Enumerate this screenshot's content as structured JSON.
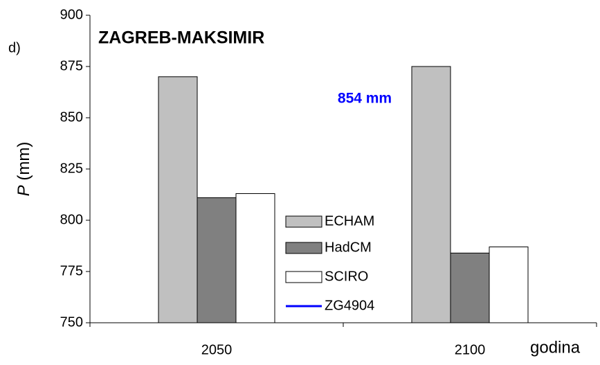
{
  "chart_data": {
    "type": "bar",
    "title": "ZAGREB-MAKSIMIR",
    "panel_label": "d)",
    "ylabel_var": "P",
    "ylabel_unit": "(mm)",
    "xlabel": "godina",
    "categories": [
      "2050",
      "2100"
    ],
    "series": [
      {
        "name": "ECHAM",
        "color": "#c0c0c0",
        "values": [
          870,
          875
        ]
      },
      {
        "name": "HadCM",
        "color": "#808080",
        "values": [
          811,
          784
        ]
      },
      {
        "name": "SCIRO",
        "color": "#ffffff",
        "values": [
          813,
          787
        ]
      }
    ],
    "reference": {
      "name": "ZG4904",
      "color": "#0000ff",
      "label": "854 mm"
    },
    "ylim": [
      750,
      900
    ],
    "yticks": [
      750,
      775,
      800,
      825,
      850,
      875,
      900
    ]
  }
}
